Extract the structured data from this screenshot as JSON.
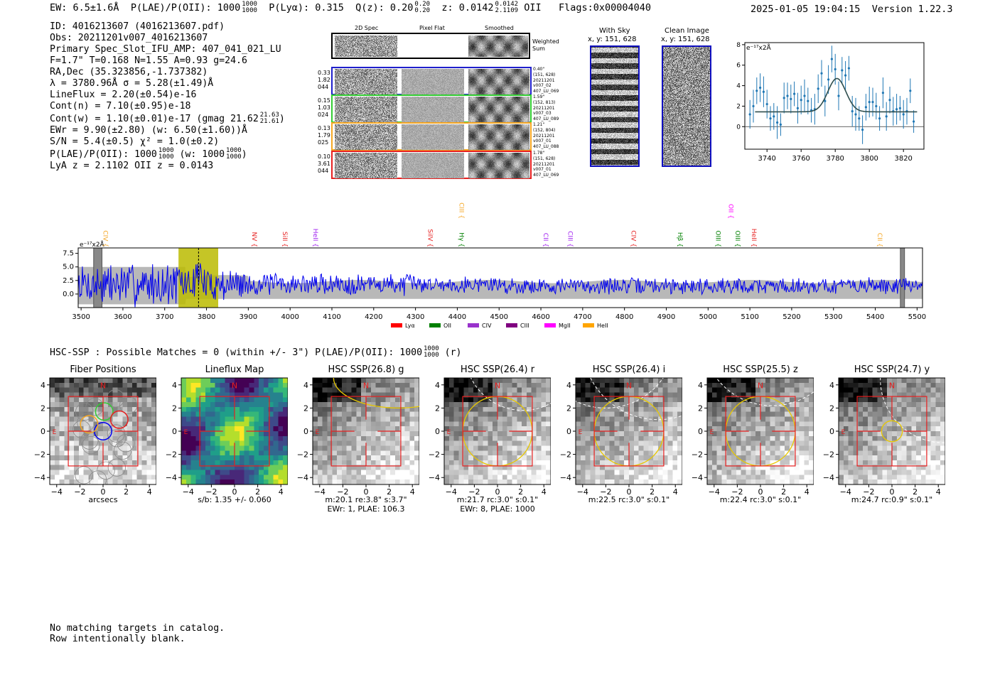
{
  "header": {
    "ew": "EW: 6.5±1.6Å",
    "plae_label": "P(LAE)/P(OII): 1000",
    "plae_hi": "1000",
    "plae_lo": "1000",
    "plya": "P(Lyα): 0.315",
    "qz_label": "Q(z): 0.20",
    "qz_hi": "0.20",
    "qz_lo": "0.20",
    "z_label": "z: 0.0142",
    "z_hi": "0.0142",
    "z_lo": "2.1109",
    "z_line": "OII",
    "flags": "Flags:0x00004040",
    "timestamp": "2025-01-05 19:04:15",
    "version": "Version 1.22.3"
  },
  "info": {
    "id": "ID: 4016213607 (4016213607.pdf)",
    "obs": "Obs: 20211201v007_4016213607",
    "primary": "Primary Spec_Slot_IFU_AMP: 407_041_021_LU",
    "fwhm": "F=1.7\"  T=0.168  N=1.55  A=0.93  g=24.6",
    "radec": "RA,Dec (35.323856,-1.737382)",
    "lambda": "λ = 3780.96Å  σ = 5.28(±1.49)Å",
    "lineflux": "LineFlux = 2.20(±0.54)e-16",
    "contn": "Cont(n) = 7.10(±0.95)e-18",
    "contw": "Cont(w) = 1.10(±0.01)e-17 (gmag 21.62",
    "contw_hi": "21.63",
    "contw_lo": "21.61",
    "contw_end": ")",
    "ewr": "EWr = 9.90(±2.80) (w: 6.50(±1.60))Å",
    "sn": "S/N = 5.4(±0.5)  χ² = 1.0(±0.2)",
    "plae": "P(LAE)/P(OII): 1000",
    "plae_hi": "1000",
    "plae_lo": "1000",
    "plae_w": "(w: 1000",
    "plae_w_hi": "1000",
    "plae_w_lo": "1000",
    "plae_w_end": ")",
    "lya": "LyA z = 2.1102  OII z = 0.0143"
  },
  "cutouts": {
    "col_headers": [
      "2D Spec",
      "Pixel Flat",
      "Smoothed"
    ],
    "weighted_label": "Weighted Sum",
    "rows": [
      {
        "left": [
          "0.33",
          "1.82",
          "044"
        ],
        "right": [
          "0.40\"",
          "(151, 628)",
          "20211201",
          "v007_02",
          "407_LU_069"
        ],
        "color": "#1f1fcc"
      },
      {
        "left": [
          "0.15",
          "1.03",
          "024"
        ],
        "right": [
          "1.59\"",
          "(152, 813)",
          "20211201",
          "v007_03",
          "407_LU_089"
        ],
        "color": "#33cc33"
      },
      {
        "left": [
          "0.13",
          "1.79",
          "025"
        ],
        "right": [
          "1.21\"",
          "(152, 804)",
          "20211201",
          "v007_01",
          "407_LU_088"
        ],
        "color": "#f5a623"
      },
      {
        "left": [
          "0.10",
          "3.61",
          "044"
        ],
        "right": [
          "1.78\"",
          "(151, 628)",
          "20211201",
          "v007_01",
          "407_LU_069"
        ],
        "color": "#e62020"
      }
    ]
  },
  "sky": {
    "with_sky_title": "With Sky",
    "with_sky_coords": "x, y: 151, 628",
    "clean_title": "Clean Image",
    "clean_coords": "x, y: 151, 628"
  },
  "fit_chart": {
    "units": "e⁻¹⁷x2Å"
  },
  "spectrum": {
    "units": "e⁻¹⁷x2Å"
  },
  "hsc": {
    "summary": "HSC-SSP : Possible Matches = 0 (within +/- 3\")  P(LAE)/P(OII): 1000",
    "summary_hi": "1000",
    "summary_lo": "1000",
    "summary_end": "(r)"
  },
  "panels": [
    {
      "title": "Fiber Positions",
      "caption1": "arcsecs",
      "caption2": ""
    },
    {
      "title": "Lineflux Map",
      "caption1": "s/b: 1.35 +/- 0.060",
      "caption2": ""
    },
    {
      "title": "HSC SSP(26.8) g",
      "caption1": "m:20.1  re:3.8\"  s:3.7\"",
      "caption2": "EWr: 1, PLAE: 106.3"
    },
    {
      "title": "HSC SSP(26.4) r",
      "caption1": "m:21.7 rc:3.0\"  s:0.1\"",
      "caption2": "EWr: 8, PLAE: 1000"
    },
    {
      "title": "HSC SSP(26.4) i",
      "caption1": "m:22.5 rc:3.0\"  s:0.1\"",
      "caption2": ""
    },
    {
      "title": "HSC SSP(25.5) z",
      "caption1": "m:22.4 rc:3.0\"  s:0.1\"",
      "caption2": ""
    },
    {
      "title": "HSC SSP(24.7) y",
      "caption1": "m:24.7 rc:0.9\"  s:0.1\"",
      "caption2": ""
    }
  ],
  "panel_labels": {
    "north": "N",
    "east": "E"
  },
  "footer": {
    "line1": "No matching targets in catalog.",
    "line2": "Row intentionally blank."
  },
  "chart_data": [
    {
      "type": "scatter",
      "name": "emission-line-fit",
      "xlim": [
        3727,
        3832
      ],
      "ylim": [
        -2.2,
        8.2
      ],
      "x_ticks": [
        3740,
        3760,
        3780,
        3800,
        3820
      ],
      "y_ticks": [
        0,
        2,
        4,
        6,
        8
      ],
      "grid": false,
      "data_color": "#1f77b4",
      "fit_color": "#2f4f4f",
      "points": [
        [
          3730,
          1.2,
          1.4
        ],
        [
          3732,
          2.0,
          1.6
        ],
        [
          3734,
          3.5,
          1.3
        ],
        [
          3736,
          3.8,
          1.4
        ],
        [
          3738,
          3.4,
          1.5
        ],
        [
          3740,
          2.2,
          1.4
        ],
        [
          3742,
          0.8,
          1.2
        ],
        [
          3744,
          1.0,
          1.3
        ],
        [
          3746,
          0.4,
          1.6
        ],
        [
          3748,
          0.2,
          1.1
        ],
        [
          3750,
          2.8,
          1.5
        ],
        [
          3752,
          3.0,
          1.3
        ],
        [
          3754,
          2.7,
          1.4
        ],
        [
          3756,
          3.2,
          1.2
        ],
        [
          3758,
          1.8,
          1.5
        ],
        [
          3760,
          2.6,
          1.4
        ],
        [
          3762,
          3.0,
          1.6
        ],
        [
          3764,
          2.5,
          1.3
        ],
        [
          3766,
          1.6,
          1.2
        ],
        [
          3768,
          1.7,
          1.5
        ],
        [
          3770,
          3.7,
          1.4
        ],
        [
          3772,
          5.2,
          1.3
        ],
        [
          3774,
          2.5,
          1.5
        ],
        [
          3776,
          4.6,
          1.4
        ],
        [
          3778,
          6.6,
          1.3
        ],
        [
          3780,
          5.6,
          1.5
        ],
        [
          3782,
          3.0,
          1.4
        ],
        [
          3784,
          5.5,
          1.3
        ],
        [
          3786,
          5.0,
          1.4
        ],
        [
          3788,
          5.7,
          1.2
        ],
        [
          3790,
          1.5,
          1.5
        ],
        [
          3792,
          1.2,
          1.6
        ],
        [
          3794,
          0.8,
          1.2
        ],
        [
          3796,
          -0.3,
          1.4
        ],
        [
          3798,
          1.9,
          1.3
        ],
        [
          3800,
          2.4,
          1.5
        ],
        [
          3802,
          2.4,
          1.4
        ],
        [
          3804,
          2.0,
          1.3
        ],
        [
          3806,
          0.8,
          1.2
        ],
        [
          3808,
          3.3,
          1.5
        ],
        [
          3810,
          1.0,
          1.4
        ],
        [
          3812,
          2.6,
          1.3
        ],
        [
          3814,
          1.5,
          1.4
        ],
        [
          3816,
          1.7,
          1.5
        ],
        [
          3818,
          1.8,
          1.2
        ],
        [
          3820,
          1.2,
          1.4
        ],
        [
          3822,
          1.5,
          1.3
        ],
        [
          3824,
          3.5,
          1.2
        ],
        [
          3826,
          0.5,
          1.1
        ]
      ],
      "fit": {
        "continuum": 1.45,
        "amplitude": 3.25,
        "center": 3780.96,
        "sigma": 5.28,
        "x_range": [
          3733,
          3828
        ]
      }
    },
    {
      "type": "line",
      "name": "full-spectrum",
      "xlim": [
        3493,
        5513
      ],
      "ylim": [
        -2.5,
        8.5
      ],
      "x_ticks": [
        3500,
        3600,
        3700,
        3800,
        3900,
        4000,
        4100,
        4200,
        4300,
        4400,
        4500,
        4600,
        4700,
        4800,
        4900,
        5000,
        5100,
        5200,
        5300,
        5400,
        5500
      ],
      "y_ticks": [
        0.0,
        2.5,
        5.0,
        7.5
      ],
      "spectrum_color": "#0000ee",
      "error_band_color": "#b8b8b8",
      "highlight_band": [
        3733,
        3828
      ],
      "highlight_color": "#bbbb00",
      "highlight_line": 3781,
      "edge_bands": [
        [
          3530,
          3550
        ],
        [
          5460,
          5470
        ]
      ],
      "line_markers": [
        {
          "label": "CIV",
          "x": 3553,
          "color": "#f5a623",
          "tier": 1
        },
        {
          "label": "NV",
          "x": 3910,
          "color": "#e62020",
          "tier": 1
        },
        {
          "label": "SiII",
          "x": 3983,
          "color": "#e62020",
          "tier": 1
        },
        {
          "label": "HeII",
          "x": 4056,
          "color": "#a020f0",
          "tier": 1
        },
        {
          "label": "SiIV",
          "x": 4330,
          "color": "#e62020",
          "tier": 1
        },
        {
          "label": "CIII",
          "x": 4405,
          "color": "#f5a623",
          "tier": 0
        },
        {
          "label": "Hγ",
          "x": 4405,
          "color": "#008000",
          "tier": 1
        },
        {
          "label": "CII",
          "x": 4607,
          "color": "#a020f0",
          "tier": 1
        },
        {
          "label": "CIII",
          "x": 4665,
          "color": "#a020f0",
          "tier": 1
        },
        {
          "label": "CIV",
          "x": 4817,
          "color": "#e62020",
          "tier": 1
        },
        {
          "label": "Hβ",
          "x": 4928,
          "color": "#008000",
          "tier": 1
        },
        {
          "label": "OII",
          "x": 5050,
          "color": "#ff00ff",
          "tier": 0
        },
        {
          "label": "OIII",
          "x": 5019,
          "color": "#008000",
          "tier": 1
        },
        {
          "label": "OIII",
          "x": 5066,
          "color": "#008000",
          "tier": 1
        },
        {
          "label": "HeII",
          "x": 5105,
          "color": "#e62020",
          "tier": 1
        },
        {
          "label": "CII",
          "x": 5406,
          "color": "#f5a623",
          "tier": 1
        }
      ],
      "legend": [
        {
          "label": "Lyα",
          "color": "#ff0000"
        },
        {
          "label": "OII",
          "color": "#008000"
        },
        {
          "label": "CIV",
          "color": "#9932cc"
        },
        {
          "label": "CIII",
          "color": "#800080"
        },
        {
          "label": "MgII",
          "color": "#ff00ff"
        },
        {
          "label": "HeII",
          "color": "#ffa500"
        }
      ]
    }
  ],
  "panel_axes": {
    "xlim": [
      -4.6,
      4.6
    ],
    "ylim": [
      -4.6,
      4.6
    ],
    "ticks": [
      -4,
      -2,
      0,
      2,
      4
    ]
  },
  "panel_overlays": [
    {
      "fibers": [
        [
          0,
          0,
          "#0000ee"
        ],
        [
          -1.2,
          0.6,
          "#f5a623"
        ],
        [
          0.1,
          1.7,
          "#33cc33"
        ],
        [
          1.4,
          1.0,
          "#e62020"
        ]
      ]
    },
    {},
    {
      "ellipse": {
        "cx": 2.8,
        "cy": 4.6,
        "rx": 5.6,
        "ry": 2.6,
        "color": "#e8c800"
      }
    },
    {
      "circle": {
        "cx": 0,
        "cy": 0,
        "r": 3.0,
        "color": "#e8c800"
      },
      "dashed": [
        {
          "cx": 2.2,
          "cy": 6.8,
          "r": 5.0
        }
      ]
    },
    {
      "circle": {
        "cx": 0,
        "cy": 0,
        "r": 3.0,
        "color": "#e8c800"
      },
      "dashed": [
        {
          "cx": -2.0,
          "cy": 8.0,
          "r": 6.0
        },
        {
          "cx": 2.5,
          "cy": 7.5,
          "r": 6.5
        }
      ]
    },
    {
      "circle": {
        "cx": 0,
        "cy": 0,
        "r": 3.0,
        "color": "#e8c800"
      },
      "dashed": [
        {
          "cx": 1.0,
          "cy": 8.2,
          "r": 6.0
        }
      ]
    },
    {
      "circle": {
        "cx": 0,
        "cy": 0,
        "r": 0.9,
        "color": "#e8c800"
      },
      "dashed": [
        {
          "cx": 4.5,
          "cy": 4.5,
          "r": 5.5
        }
      ]
    }
  ]
}
